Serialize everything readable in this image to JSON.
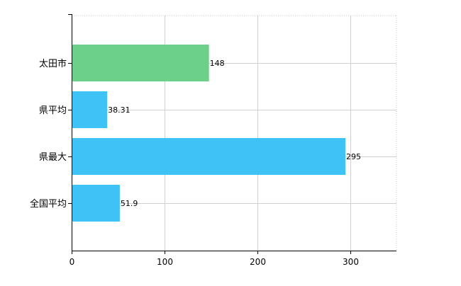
{
  "chart_data": {
    "type": "bar",
    "orientation": "horizontal",
    "title": "",
    "xlabel": "",
    "ylabel": "",
    "categories": [
      "太田市",
      "県平均",
      "県最大",
      "全国平均"
    ],
    "values": [
      148,
      38.31,
      295,
      51.9
    ],
    "value_labels": [
      "148",
      "38.31",
      "295",
      "51.9"
    ],
    "colors": [
      "#6dd08a",
      "#3fc3f7",
      "#3fc3f7",
      "#3fc3f7"
    ],
    "xlim": [
      0,
      350
    ],
    "x_ticks": [
      0,
      100,
      200,
      300
    ],
    "x_tick_labels": [
      "0",
      "100",
      "200",
      "300"
    ],
    "grid": true,
    "legend": "none"
  }
}
